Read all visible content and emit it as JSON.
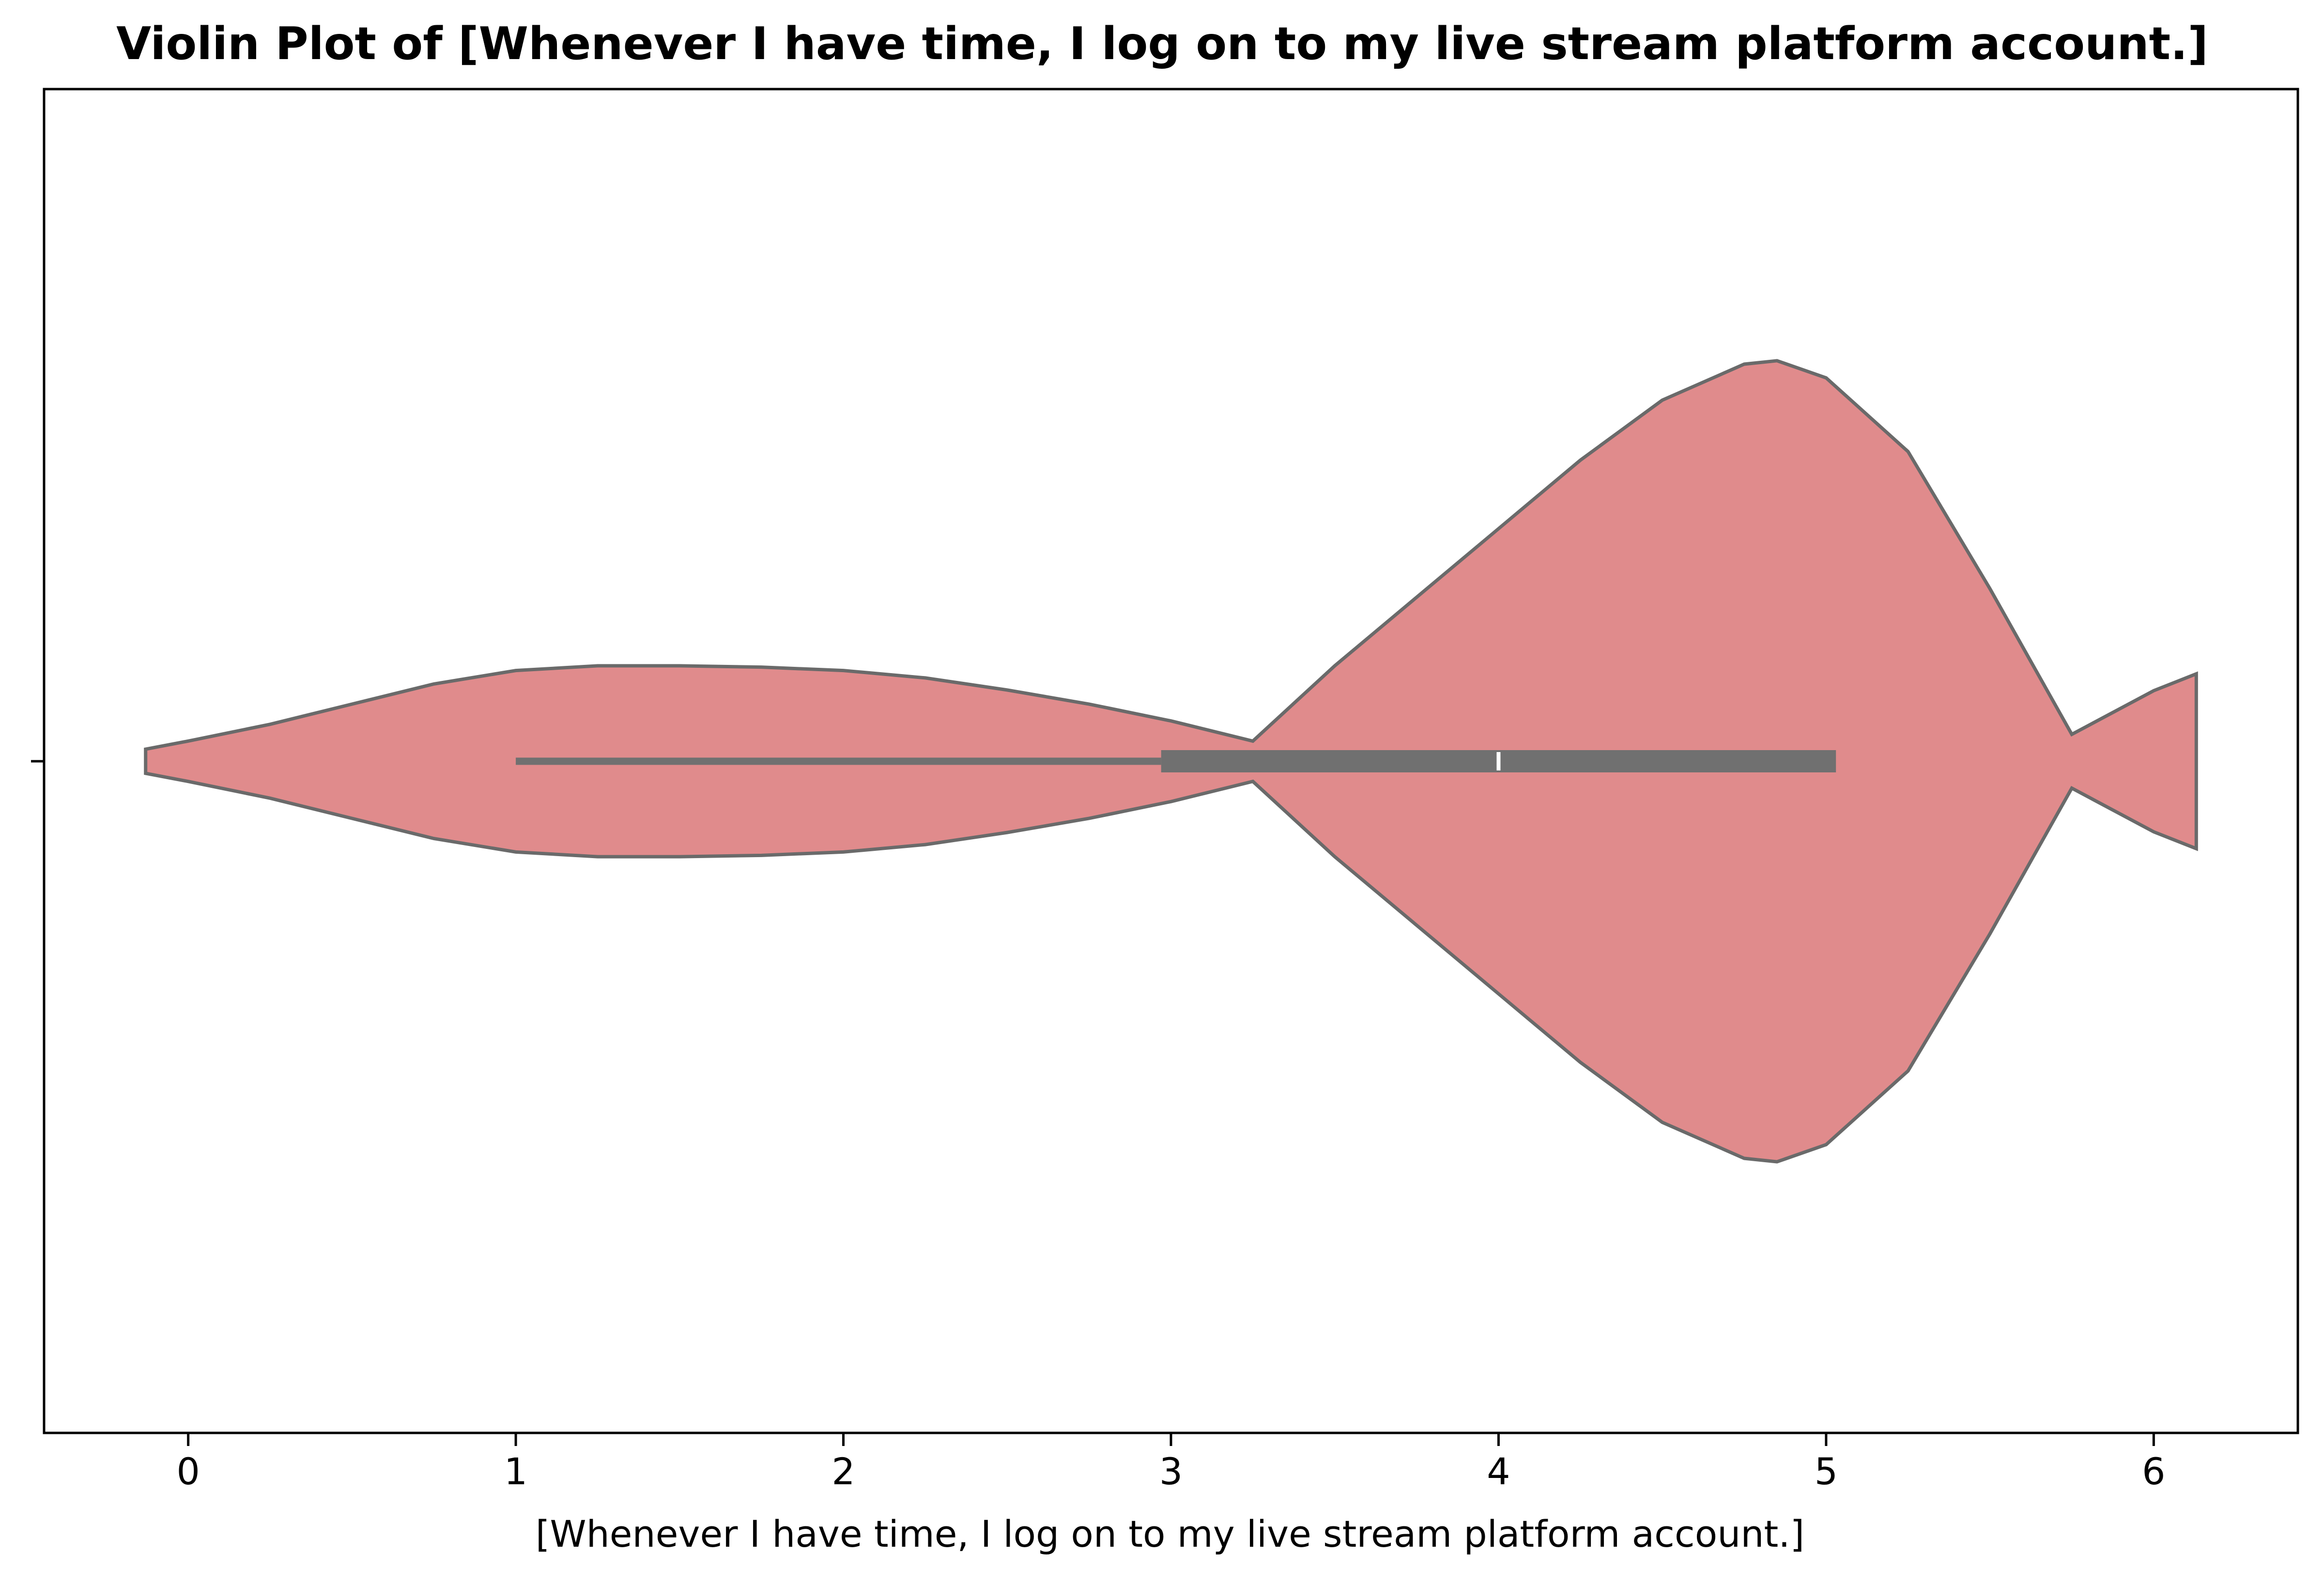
{
  "chart_data": {
    "type": "violin",
    "title": "Violin Plot of [Whenever I have time, I log on to my live stream platform account.]",
    "xlabel": "[Whenever I have time, I log on to my live stream platform account.]",
    "ylabel": "",
    "xlim": [
      -0.44,
      6.44
    ],
    "x_ticks": [
      0,
      1,
      2,
      3,
      4,
      5,
      6
    ],
    "x_tick_labels": [
      "0",
      "1",
      "2",
      "3",
      "4",
      "5",
      "6"
    ],
    "grid": false,
    "legend": "none",
    "series": [
      {
        "fill_color": "#e08b8c",
        "edge_color": "#6a6a6a",
        "box_color": "#707070",
        "median_color": "#ffffff",
        "density": {
          "x": [
            -0.13,
            0.0,
            0.25,
            0.5,
            0.75,
            1.0,
            1.25,
            1.5,
            1.75,
            2.0,
            2.25,
            2.5,
            2.75,
            3.0,
            3.25,
            3.5,
            3.75,
            4.0,
            4.25,
            4.5,
            4.75,
            4.85,
            5.0,
            5.25,
            5.5,
            5.75,
            6.0,
            6.13
          ],
          "half_width": [
            0.018,
            0.03,
            0.055,
            0.085,
            0.115,
            0.135,
            0.142,
            0.142,
            0.14,
            0.135,
            0.124,
            0.106,
            0.085,
            0.06,
            0.03,
            0.0,
            -0.04,
            -0.08,
            -0.12,
            -0.155,
            -0.176,
            -0.178,
            -0.168,
            -0.125,
            -0.045,
            0.04,
            0.105,
            0.13
          ]
        },
        "whisker_low": 1.0,
        "q1": 2.97,
        "median": 4.0,
        "q3": 5.03,
        "whisker_high": 6.13
      }
    ]
  }
}
